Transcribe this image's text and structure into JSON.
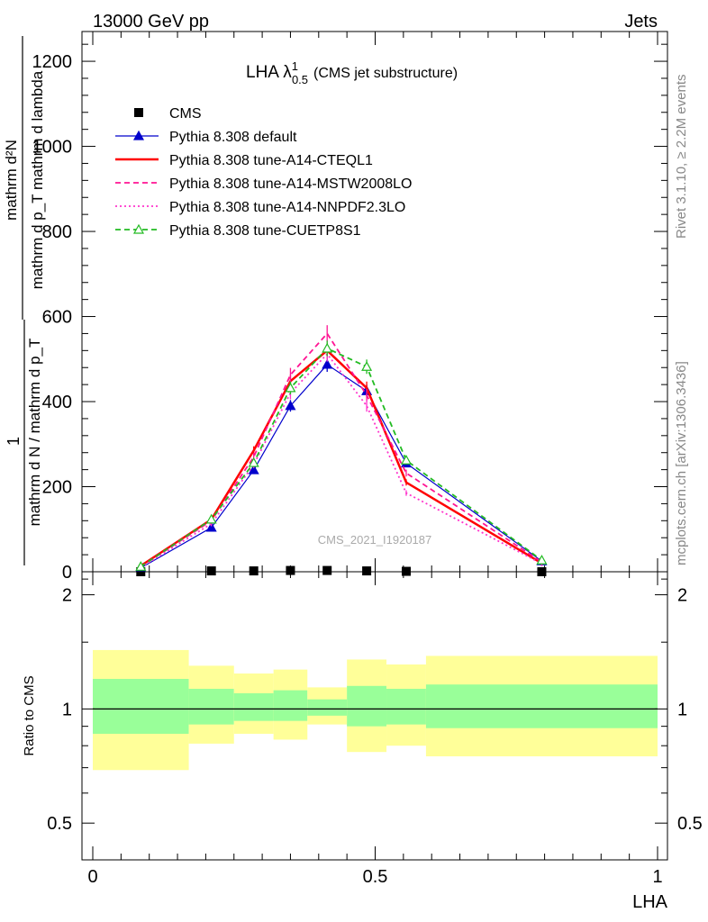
{
  "header": {
    "left": "13000 GeV pp",
    "right": "Jets"
  },
  "side_labels": {
    "rivet": "Rivet 3.1.10, ≥ 2.2M events",
    "mcplots": "mcplots.cern.ch [arXiv:1306.3436]"
  },
  "watermark": "CMS_2021_I1920187",
  "chart_data": [
    {
      "type": "line",
      "title_main": "LHA λ",
      "title_sup": "1",
      "title_sub": "0.5",
      "title_suffix": "(CMS jet substructure)",
      "ylabel": {
        "top": "mathrm d²N",
        "topB": "mathrm d p_T mathrm d lambda",
        "numerator": "1",
        "denominator": "mathrm d N / mathrm d p_T"
      },
      "xlim": [
        0,
        1
      ],
      "ylim": [
        0,
        1270
      ],
      "yticks": [
        "0",
        "200",
        "400",
        "600",
        "800",
        "1000",
        "1200"
      ],
      "ytick_values": [
        0,
        200,
        400,
        600,
        800,
        1000,
        1200
      ],
      "legend_position": "top-left",
      "bins": [
        0,
        0.17,
        0.25,
        0.32,
        0.38,
        0.45,
        0.52,
        0.59,
        1.0
      ],
      "x": [
        0.085,
        0.21,
        0.285,
        0.35,
        0.415,
        0.485,
        0.555,
        0.795
      ],
      "series": [
        {
          "name": "CMS",
          "color": "#000000",
          "style": "marker-square",
          "values": [
            0,
            2,
            2,
            3,
            3,
            2,
            1,
            0
          ]
        },
        {
          "name": "Pythia 8.308 default",
          "color": "#0000cc",
          "style": "solid-thin-triangle",
          "values": [
            9,
            104,
            239,
            390,
            487,
            425,
            255,
            25
          ]
        },
        {
          "name": "Pythia 8.308 tune-A14-CTEQL1",
          "color": "#ff0000",
          "style": "solid-thick",
          "values": [
            14,
            123,
            285,
            448,
            520,
            432,
            210,
            20
          ]
        },
        {
          "name": "Pythia 8.308 tune-A14-MSTW2008LO",
          "color": "#ff1493",
          "style": "dashed",
          "values": [
            12,
            120,
            270,
            463,
            560,
            415,
            232,
            23
          ]
        },
        {
          "name": "Pythia 8.308 tune-A14-NNPDF2.3LO",
          "color": "#ff33cc",
          "style": "dotted",
          "values": [
            10,
            113,
            252,
            420,
            512,
            390,
            185,
            19
          ]
        },
        {
          "name": "Pythia 8.308 tune-CUETP8S1",
          "color": "#22bb22",
          "style": "dashed-open-triangle",
          "values": [
            12,
            123,
            256,
            432,
            525,
            482,
            262,
            27
          ]
        }
      ]
    },
    {
      "type": "area",
      "ylabel": "Ratio to CMS",
      "xlabel": "LHA",
      "xlim": [
        0,
        1
      ],
      "ylim": [
        0.4,
        2.3
      ],
      "log_y": true,
      "yticks": [
        "0.5",
        "1",
        "2"
      ],
      "ytick_values": [
        0.5,
        1,
        2
      ],
      "xticks": [
        "0",
        "0.5",
        "1"
      ],
      "xtick_values": [
        0,
        0.5,
        1
      ],
      "reference_line": 1,
      "bins": [
        0,
        0.17,
        0.25,
        0.32,
        0.38,
        0.45,
        0.52,
        0.59,
        1.0
      ],
      "band_stat": {
        "color": "#99ff99",
        "lo": [
          0.86,
          0.91,
          0.93,
          0.93,
          0.96,
          0.9,
          0.91,
          0.89
        ],
        "hi": [
          1.2,
          1.13,
          1.1,
          1.12,
          1.06,
          1.15,
          1.13,
          1.16
        ]
      },
      "band_total": {
        "color": "#ffff99",
        "lo": [
          0.69,
          0.81,
          0.86,
          0.83,
          0.91,
          0.77,
          0.8,
          0.75
        ],
        "hi": [
          1.43,
          1.3,
          1.24,
          1.27,
          1.14,
          1.35,
          1.31,
          1.38
        ]
      }
    }
  ]
}
